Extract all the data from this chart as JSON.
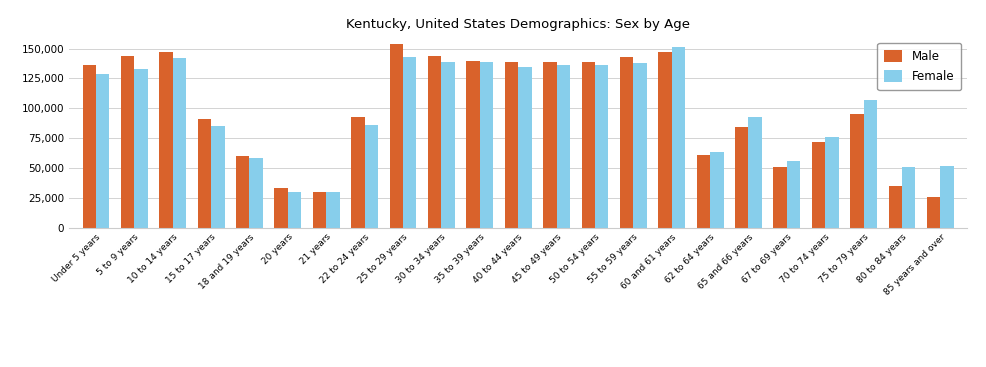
{
  "title": "Kentucky, United States Demographics: Sex by Age",
  "categories": [
    "Under 5 years",
    "5 to 9 years",
    "10 to 14 years",
    "15 to 17 years",
    "18 and 19 years",
    "20 years",
    "21 years",
    "22 to 24 years",
    "25 to 29 years",
    "30 to 34 years",
    "35 to 39 years",
    "40 to 44 years",
    "45 to 49 years",
    "50 to 54 years",
    "55 to 59 years",
    "60 and 61 years",
    "62 to 64 years",
    "65 and 66 years",
    "67 to 69 years",
    "70 to 74 years",
    "75 to 79 years",
    "80 to 84 years",
    "85 years and over"
  ],
  "male": [
    136000,
    144000,
    147000,
    91000,
    60000,
    33000,
    30000,
    93000,
    154000,
    144000,
    140000,
    139000,
    139000,
    139000,
    143000,
    147000,
    61000,
    84000,
    51000,
    72000,
    95000,
    35000,
    26000
  ],
  "female": [
    129000,
    133000,
    142000,
    85000,
    58000,
    30000,
    30000,
    86000,
    143000,
    139000,
    139000,
    135000,
    136000,
    136000,
    138000,
    151000,
    63000,
    93000,
    56000,
    76000,
    107000,
    51000,
    52000
  ],
  "male_color": "#d9622b",
  "female_color": "#87ceeb",
  "ylim": [
    0,
    160000
  ],
  "yticks": [
    0,
    25000,
    50000,
    75000,
    100000,
    125000,
    150000
  ],
  "background_color": "#ffffff",
  "legend_male": "Male",
  "legend_female": "Female"
}
